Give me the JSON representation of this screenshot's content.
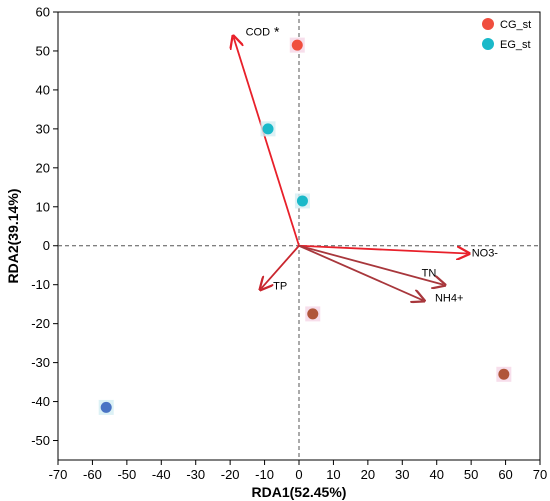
{
  "chart_data": {
    "type": "scatter",
    "title": "",
    "xlabel": "RDA1(52.45%)",
    "ylabel": "RDA2(39.14%)",
    "xlim": [
      -70,
      70
    ],
    "ylim": [
      -55,
      60
    ],
    "xticks": [
      -70,
      -60,
      -50,
      -40,
      -30,
      -20,
      -10,
      0,
      10,
      20,
      30,
      40,
      50,
      60,
      70
    ],
    "yticks": [
      -50,
      -40,
      -30,
      -20,
      -10,
      0,
      10,
      20,
      30,
      40,
      50,
      60
    ],
    "reference_lines": {
      "x": 0,
      "y": 0,
      "style": "dashed"
    },
    "legend_position": "top-right",
    "series": [
      {
        "name": "CG_st",
        "color": "#f04e3e",
        "points": [
          {
            "x": -0.5,
            "y": 51.5,
            "color": "#f04e3e"
          },
          {
            "x": 4,
            "y": -17.5,
            "color": "#b0563a"
          },
          {
            "x": 59.5,
            "y": -33,
            "color": "#b0563a"
          }
        ]
      },
      {
        "name": "EG_st",
        "color": "#1ab9c9",
        "points": [
          {
            "x": -9,
            "y": 30,
            "color": "#1ab9c9"
          },
          {
            "x": 1,
            "y": 11.5,
            "color": "#1ab9c9"
          },
          {
            "x": -56,
            "y": -41.5,
            "color": "#4a73c4"
          }
        ]
      }
    ],
    "vectors": [
      {
        "label": "COD",
        "x": -19,
        "y": 53.5,
        "color": "#e8202a",
        "annotation": "*"
      },
      {
        "label": "NO3-",
        "x": 49,
        "y": -2,
        "color": "#e8202a",
        "annotation": ""
      },
      {
        "label": "TN",
        "x": 42,
        "y": -10,
        "color": "#a8373c",
        "annotation": ""
      },
      {
        "label": "NH4+",
        "x": 36,
        "y": -14,
        "color": "#a8373c",
        "annotation": ""
      },
      {
        "label": "TP",
        "x": -11,
        "y": -11,
        "color": "#c9262e",
        "annotation": ""
      }
    ]
  }
}
